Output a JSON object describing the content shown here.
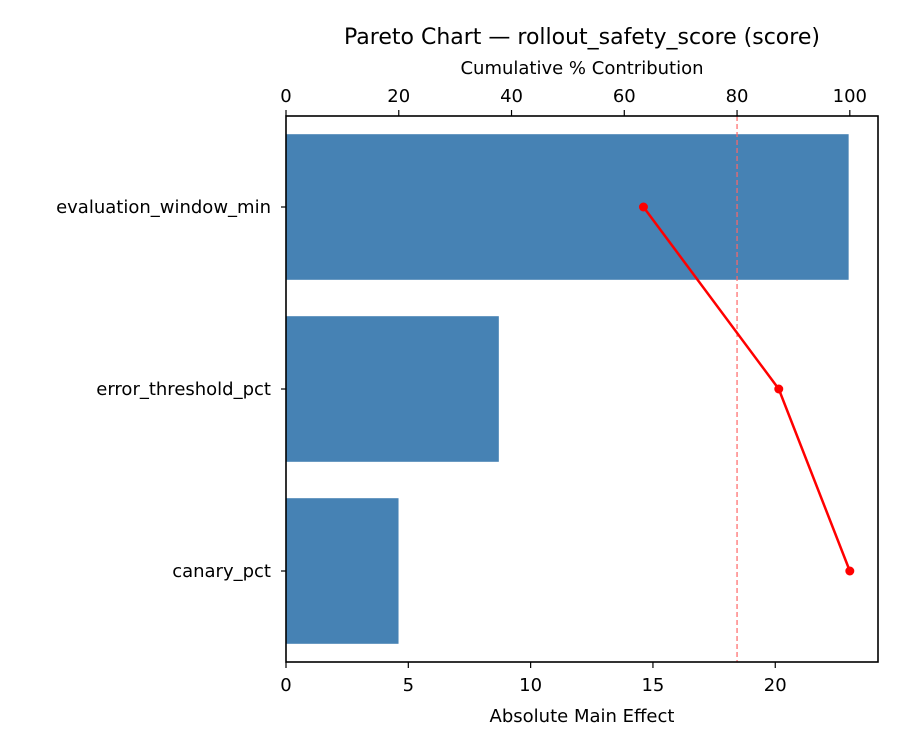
{
  "chart_data": {
    "type": "bar",
    "orientation": "horizontal",
    "title": "Pareto Chart — rollout_safety_score (score)",
    "xlabel": "Absolute Main Effect",
    "x2label": "Cumulative % Contribution",
    "ylabel": "",
    "categories": [
      "evaluation_window_min",
      "error_threshold_pct",
      "canary_pct"
    ],
    "series": [
      {
        "name": "Absolute Main Effect",
        "type": "bar",
        "color": "#4682b4",
        "values": [
          23.0,
          8.7,
          4.6
        ]
      },
      {
        "name": "Cumulative %",
        "type": "line",
        "axis": "top",
        "color": "#ff0000",
        "values": [
          63.4,
          87.4,
          100.0
        ]
      }
    ],
    "xlim": [
      0,
      24.2
    ],
    "x2lim": [
      0,
      105
    ],
    "xticks": [
      0,
      5,
      10,
      15,
      20
    ],
    "x2ticks": [
      0,
      20,
      40,
      60,
      80,
      100
    ],
    "threshold": {
      "value": 80,
      "axis": "top",
      "style": "dashed",
      "color": "#ff6666"
    },
    "grid": false,
    "legend": null
  },
  "labels": {
    "title": "Pareto Chart — rollout_safety_score (score)",
    "top_axis": "Cumulative % Contribution",
    "bottom_axis": "Absolute Main Effect"
  }
}
